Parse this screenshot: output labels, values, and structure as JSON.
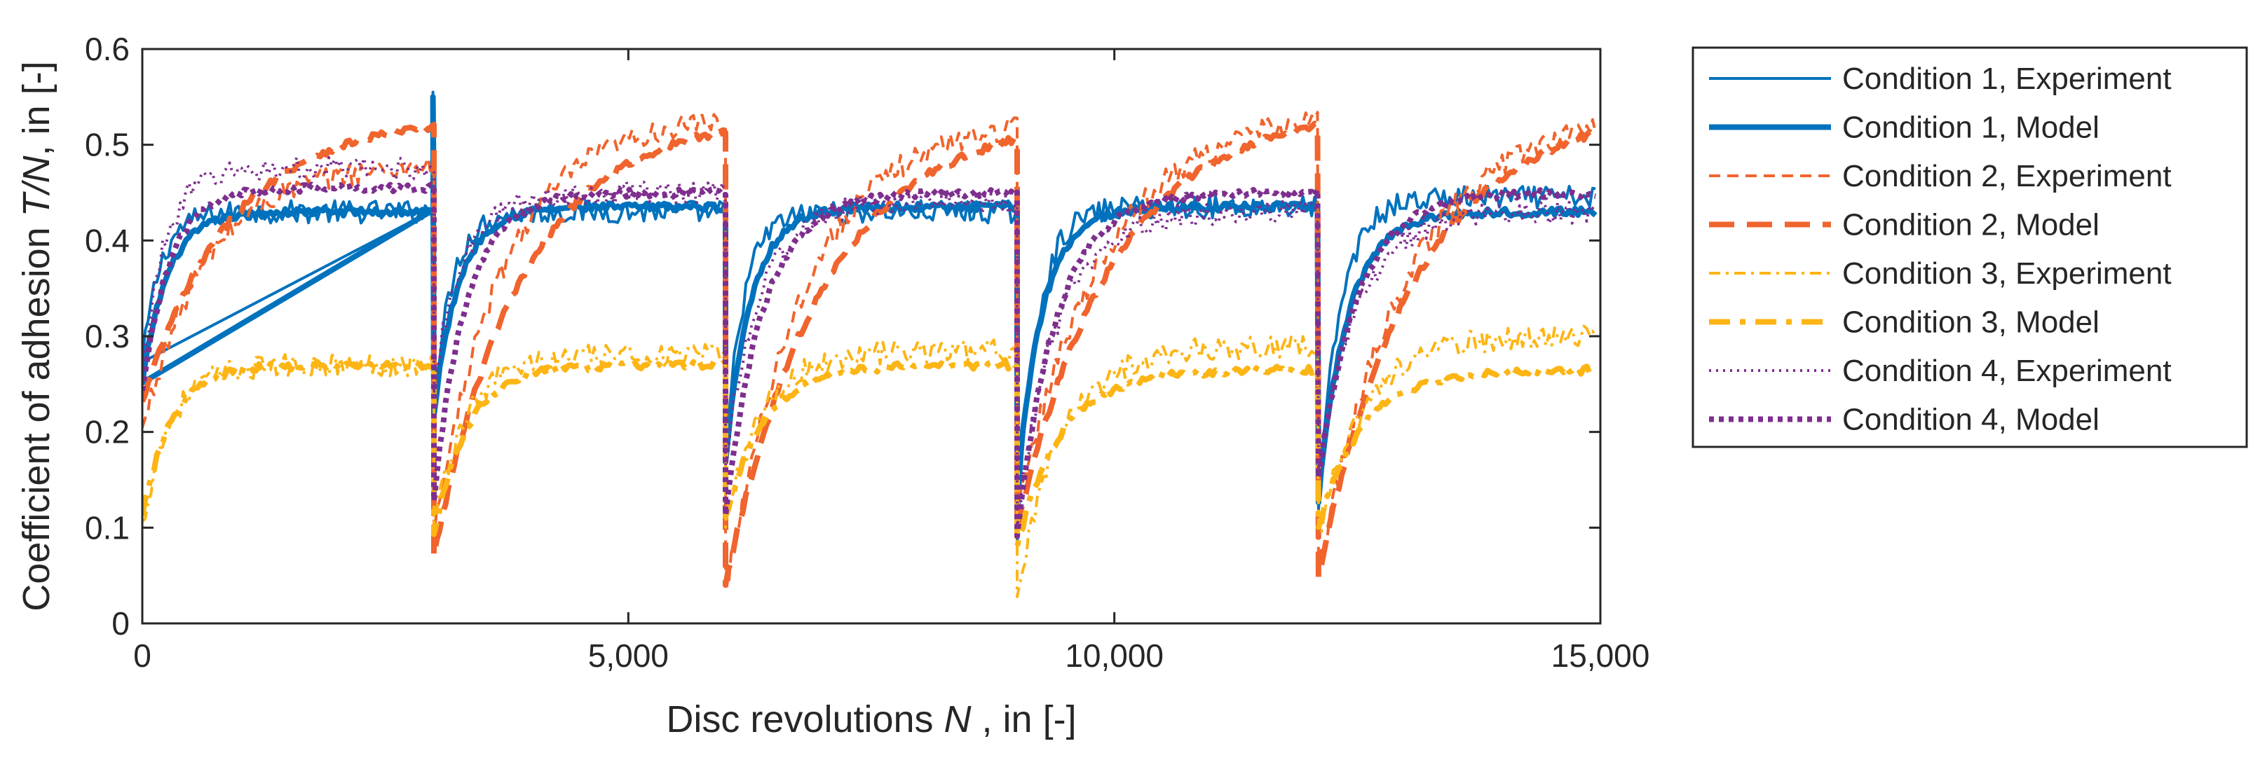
{
  "chart_data": {
    "type": "line",
    "title": "",
    "xlabel": {
      "pre": "Disc revolutions ",
      "var": "N",
      "post": " , in [-]"
    },
    "ylabel": {
      "pre": "Coefficient of adhesion ",
      "var": "T/N",
      "post": ", in [-]"
    },
    "xlim": [
      0,
      15000
    ],
    "ylim": [
      0,
      0.6
    ],
    "xticks": [
      0,
      5000,
      10000,
      15000
    ],
    "xtick_labels": [
      "0",
      "5,000",
      "10,000",
      "15,000"
    ],
    "yticks": [
      0,
      0.1,
      0.2,
      0.3,
      0.4,
      0.5,
      0.6
    ],
    "ytick_labels": [
      "0",
      "0.1",
      "0.2",
      "0.3",
      "0.4",
      "0.5",
      "0.6"
    ],
    "grid": false,
    "legend_position": "outside-right-top",
    "segments": [
      {
        "start": 0,
        "end": 3000
      },
      {
        "start": 3000,
        "end": 6000
      },
      {
        "start": 6000,
        "end": 9000
      },
      {
        "start": 9000,
        "end": 12100
      },
      {
        "start": 12100,
        "end": 14950
      }
    ],
    "series": [
      {
        "name": "Condition 1, Experiment",
        "color": "#0072BD",
        "style": "solid",
        "width": 4,
        "profiles": [
          {
            "min": 0.27,
            "plateau": 0.43,
            "tau": 180,
            "peak": 0.555
          },
          {
            "min": 0.22,
            "plateau": 0.43,
            "tau": 180
          },
          {
            "min": 0.17,
            "plateau": 0.43,
            "tau": 180
          },
          {
            "min": 0.09,
            "plateau": 0.435,
            "tau": 200
          },
          {
            "min": 0.12,
            "plateau": 0.445,
            "tau": 220
          }
        ]
      },
      {
        "name": "Condition 1, Model",
        "color": "#0072BD",
        "style": "solid",
        "width": 8,
        "profiles": [
          {
            "min": 0.25,
            "plateau": 0.43,
            "tau": 260,
            "peak": 0.55
          },
          {
            "min": 0.22,
            "plateau": 0.435,
            "tau": 260
          },
          {
            "min": 0.17,
            "plateau": 0.435,
            "tau": 260
          },
          {
            "min": 0.14,
            "plateau": 0.435,
            "tau": 260
          },
          {
            "min": 0.13,
            "plateau": 0.43,
            "tau": 300
          }
        ]
      },
      {
        "name": "Condition 2, Experiment",
        "color": "#F0642D",
        "style": "dash",
        "width": 4,
        "profiles": [
          {
            "min": 0.2,
            "plateau": 0.48,
            "tau": 650
          },
          {
            "min": 0.09,
            "plateau": 0.53,
            "tau": 700
          },
          {
            "min": 0.03,
            "plateau": 0.53,
            "tau": 800
          },
          {
            "min": 0.12,
            "plateau": 0.54,
            "tau": 900
          },
          {
            "min": 0.05,
            "plateau": 0.54,
            "tau": 900
          }
        ]
      },
      {
        "name": "Condition 2, Model",
        "color": "#F0642D",
        "style": "dashbig",
        "width": 8,
        "profiles": [
          {
            "min": 0.23,
            "plateau": 0.53,
            "tau": 900
          },
          {
            "min": 0.07,
            "plateau": 0.53,
            "tau": 900
          },
          {
            "min": 0.04,
            "plateau": 0.53,
            "tau": 1000
          },
          {
            "min": 0.1,
            "plateau": 0.54,
            "tau": 1000
          },
          {
            "min": 0.05,
            "plateau": 0.54,
            "tau": 1000
          }
        ]
      },
      {
        "name": "Condition 3, Experiment",
        "color": "#FDB515",
        "style": "dashdot",
        "width": 4,
        "profiles": [
          {
            "min": 0.1,
            "plateau": 0.27,
            "tau": 280
          },
          {
            "min": 0.1,
            "plateau": 0.28,
            "tau": 320
          },
          {
            "min": 0.11,
            "plateau": 0.285,
            "tau": 380
          },
          {
            "min": 0.03,
            "plateau": 0.29,
            "tau": 450
          },
          {
            "min": 0.09,
            "plateau": 0.3,
            "tau": 450
          }
        ]
      },
      {
        "name": "Condition 3, Model",
        "color": "#FDB515",
        "style": "dashdotbig",
        "width": 8,
        "profiles": [
          {
            "min": 0.11,
            "plateau": 0.27,
            "tau": 300
          },
          {
            "min": 0.09,
            "plateau": 0.27,
            "tau": 340
          },
          {
            "min": 0.11,
            "plateau": 0.27,
            "tau": 400
          },
          {
            "min": 0.08,
            "plateau": 0.265,
            "tau": 450
          },
          {
            "min": 0.1,
            "plateau": 0.265,
            "tau": 450
          }
        ]
      },
      {
        "name": "Condition 4, Experiment",
        "color": "#7E2F8E",
        "style": "dot",
        "width": 4,
        "profiles": [
          {
            "min": 0.26,
            "plateau": 0.475,
            "tau": 230
          },
          {
            "min": 0.25,
            "plateau": 0.45,
            "tau": 300
          },
          {
            "min": 0.17,
            "plateau": 0.44,
            "tau": 350
          },
          {
            "min": 0.1,
            "plateau": 0.43,
            "tau": 400
          },
          {
            "min": 0.16,
            "plateau": 0.43,
            "tau": 400
          }
        ]
      },
      {
        "name": "Condition 4, Model",
        "color": "#7E2F8E",
        "style": "dotbig",
        "width": 8,
        "profiles": [
          {
            "min": 0.24,
            "plateau": 0.455,
            "tau": 280
          },
          {
            "min": 0.13,
            "plateau": 0.45,
            "tau": 330
          },
          {
            "min": 0.11,
            "plateau": 0.45,
            "tau": 380
          },
          {
            "min": 0.09,
            "plateau": 0.45,
            "tau": 400
          },
          {
            "min": 0.15,
            "plateau": 0.45,
            "tau": 400
          }
        ]
      }
    ]
  }
}
